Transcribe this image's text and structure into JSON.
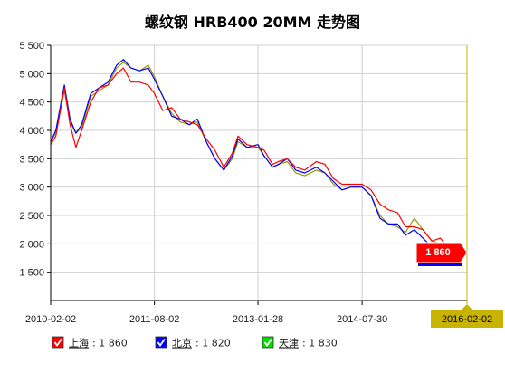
{
  "colors": {
    "shanghai": "#ff0000",
    "beijing": "#0000ff",
    "tianjin": "#999900",
    "tianjin_legend_box": "#00dd00",
    "end_label_bg": "#c8b400",
    "grid": "#d0d0d0",
    "axis": "#000000"
  },
  "chart_data": {
    "type": "line",
    "title": "螺纹钢 HRB400 20MM 走势图",
    "y_ticks": [
      "5 500",
      "5 000",
      "4 500",
      "4 000",
      "3 500",
      "3 000",
      "2 500",
      "2 000",
      "1 500"
    ],
    "y_tick_values": [
      5500,
      5000,
      4500,
      4000,
      3500,
      3000,
      2500,
      2000,
      1500
    ],
    "ylim": [
      1000,
      5500
    ],
    "x_ticks": [
      "2010-02-02",
      "2011-08-02",
      "2013-01-28",
      "2014-07-30"
    ],
    "x_tick_values": [
      "2010-02-02",
      "2011-08-02",
      "2013-01-28",
      "2014-07-30"
    ],
    "xlim": [
      "2010-02-02",
      "2016-02-02"
    ],
    "x_end_label": "2016-02-02",
    "current_label": "1 860",
    "grid": true,
    "legend_position": "bottom",
    "legend": [
      {
        "key": "shanghai",
        "name": "上海",
        "value_text": ": 1 860",
        "icon": "check-icon"
      },
      {
        "key": "beijing",
        "name": "北京",
        "value_text": ": 1 820",
        "icon": "check-icon"
      },
      {
        "key": "tianjin",
        "name": "天津",
        "value_text": ": 1 830",
        "icon": "check-icon"
      }
    ],
    "series": [
      {
        "name": "上海",
        "key": "shanghai",
        "x": [
          "2010-02-02",
          "2010-03-01",
          "2010-04-15",
          "2010-05-15",
          "2010-06-15",
          "2010-07-15",
          "2010-09-01",
          "2010-10-15",
          "2010-12-01",
          "2011-01-15",
          "2011-02-20",
          "2011-04-01",
          "2011-05-15",
          "2011-07-01",
          "2011-08-02",
          "2011-09-15",
          "2011-11-01",
          "2011-12-15",
          "2012-02-01",
          "2012-03-15",
          "2012-05-01",
          "2012-06-15",
          "2012-08-01",
          "2012-09-15",
          "2012-10-15",
          "2012-12-01",
          "2013-01-28",
          "2013-03-01",
          "2013-04-15",
          "2013-05-15",
          "2013-07-01",
          "2013-08-15",
          "2013-10-01",
          "2013-12-01",
          "2014-01-15",
          "2014-03-01",
          "2014-04-15",
          "2014-06-01",
          "2014-07-30",
          "2014-09-15",
          "2014-11-01",
          "2014-12-15",
          "2015-02-01",
          "2015-03-15",
          "2015-05-01",
          "2015-06-15",
          "2015-08-01",
          "2015-09-15",
          "2015-11-01",
          "2015-12-15",
          "2016-02-02"
        ],
        "values": [
          3750,
          3900,
          4750,
          4100,
          3700,
          4000,
          4500,
          4750,
          4800,
          5000,
          5100,
          4850,
          4850,
          4800,
          4650,
          4350,
          4400,
          4200,
          4150,
          4100,
          3850,
          3650,
          3350,
          3600,
          3900,
          3750,
          3700,
          3650,
          3400,
          3450,
          3500,
          3350,
          3300,
          3450,
          3400,
          3150,
          3050,
          3050,
          3050,
          2950,
          2700,
          2600,
          2550,
          2300,
          2300,
          2250,
          2050,
          2100,
          1900,
          1900,
          1860
        ]
      },
      {
        "name": "北京",
        "key": "beijing",
        "x": [
          "2010-02-02",
          "2010-03-01",
          "2010-04-15",
          "2010-05-15",
          "2010-06-15",
          "2010-07-15",
          "2010-09-01",
          "2010-10-15",
          "2010-12-01",
          "2011-01-15",
          "2011-02-20",
          "2011-04-01",
          "2011-05-15",
          "2011-07-01",
          "2011-08-02",
          "2011-09-15",
          "2011-11-01",
          "2011-12-15",
          "2012-02-01",
          "2012-03-15",
          "2012-05-01",
          "2012-06-15",
          "2012-08-01",
          "2012-09-15",
          "2012-10-15",
          "2012-12-01",
          "2013-01-28",
          "2013-03-01",
          "2013-04-15",
          "2013-05-15",
          "2013-07-01",
          "2013-08-15",
          "2013-10-01",
          "2013-12-01",
          "2014-01-15",
          "2014-03-01",
          "2014-04-15",
          "2014-06-01",
          "2014-07-30",
          "2014-09-15",
          "2014-11-01",
          "2014-12-15",
          "2015-02-01",
          "2015-03-15",
          "2015-05-01",
          "2015-06-15",
          "2015-08-01",
          "2015-09-15",
          "2015-11-01",
          "2015-12-15",
          "2016-02-02"
        ],
        "values": [
          3800,
          4000,
          4800,
          4200,
          3950,
          4100,
          4650,
          4750,
          4850,
          5150,
          5250,
          5100,
          5050,
          5100,
          4900,
          4600,
          4250,
          4200,
          4100,
          4200,
          3800,
          3500,
          3300,
          3550,
          3850,
          3700,
          3750,
          3550,
          3350,
          3400,
          3500,
          3300,
          3250,
          3350,
          3250,
          3100,
          2950,
          3000,
          3000,
          2850,
          2450,
          2350,
          2350,
          2150,
          2250,
          2100,
          1950,
          1900,
          1700,
          1800,
          1820
        ]
      },
      {
        "name": "天津",
        "key": "tianjin",
        "x": [
          "2010-02-02",
          "2010-03-01",
          "2010-04-15",
          "2010-05-15",
          "2010-06-15",
          "2010-07-15",
          "2010-09-01",
          "2010-10-15",
          "2010-12-01",
          "2011-01-15",
          "2011-02-20",
          "2011-04-01",
          "2011-05-15",
          "2011-07-01",
          "2011-08-02",
          "2011-09-15",
          "2011-11-01",
          "2011-12-15",
          "2012-02-01",
          "2012-03-15",
          "2012-05-01",
          "2012-06-15",
          "2012-08-01",
          "2012-09-15",
          "2012-10-15",
          "2012-12-01",
          "2013-01-28",
          "2013-03-01",
          "2013-04-15",
          "2013-05-15",
          "2013-07-01",
          "2013-08-15",
          "2013-10-01",
          "2013-12-01",
          "2014-01-15",
          "2014-03-01",
          "2014-04-15",
          "2014-06-01",
          "2014-07-30",
          "2014-09-15",
          "2014-11-01",
          "2014-12-15",
          "2015-02-01",
          "2015-03-15",
          "2015-05-01",
          "2015-06-15",
          "2015-08-01",
          "2015-09-15",
          "2015-11-01",
          "2015-12-15",
          "2016-02-02"
        ],
        "values": [
          3800,
          3950,
          4700,
          4150,
          3950,
          4050,
          4600,
          4700,
          4800,
          5100,
          5200,
          5100,
          5050,
          5150,
          4950,
          4600,
          4300,
          4150,
          4100,
          4150,
          3800,
          3500,
          3300,
          3500,
          3800,
          3700,
          3700,
          3550,
          3350,
          3400,
          3450,
          3250,
          3200,
          3300,
          3250,
          3050,
          2950,
          3000,
          3000,
          2850,
          2500,
          2350,
          2300,
          2200,
          2450,
          2250,
          2050,
          2000,
          1850,
          1850,
          1830
        ]
      }
    ]
  }
}
